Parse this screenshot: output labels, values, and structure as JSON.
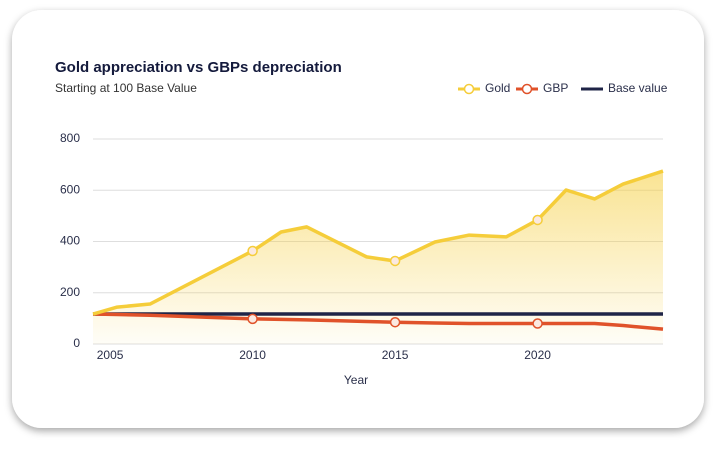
{
  "chart_data": {
    "type": "line",
    "title": "Gold appreciation vs GBPs depreciation",
    "subtitle": "Starting at 100 Base Value",
    "x_label": "Year",
    "x": [
      2004.4,
      2005.25,
      2006.4,
      2010,
      2011,
      2011.9,
      2014,
      2015,
      2016.4,
      2017.6,
      2018.9,
      2020,
      2021,
      2022,
      2023,
      2024.4
    ],
    "series": [
      {
        "name": "Gold",
        "color": "#f5cd3a",
        "values": [
          117,
          144,
          156,
          363,
          437,
          457,
          340,
          324,
          398,
          425,
          418,
          484,
          601,
          566,
          624,
          675
        ]
      },
      {
        "name": "GBP",
        "color": "#e0522a",
        "values": [
          117,
          115,
          112,
          98,
          96,
          94,
          88,
          85,
          82,
          80,
          80,
          80,
          80,
          80,
          72,
          58
        ]
      },
      {
        "name": "Base value",
        "color": "#1f2447",
        "values": [
          117,
          117,
          117,
          117,
          117,
          117,
          117,
          117,
          117,
          117,
          117,
          117,
          117,
          117,
          117,
          117
        ]
      }
    ],
    "xlim": [
      2004.4,
      2024.4
    ],
    "xticks": [
      2005,
      2010,
      2015,
      2020
    ],
    "ylim": [
      0,
      800
    ],
    "yticks": [
      0,
      200,
      400,
      600,
      800
    ],
    "grid": true,
    "legend": "top-right"
  }
}
